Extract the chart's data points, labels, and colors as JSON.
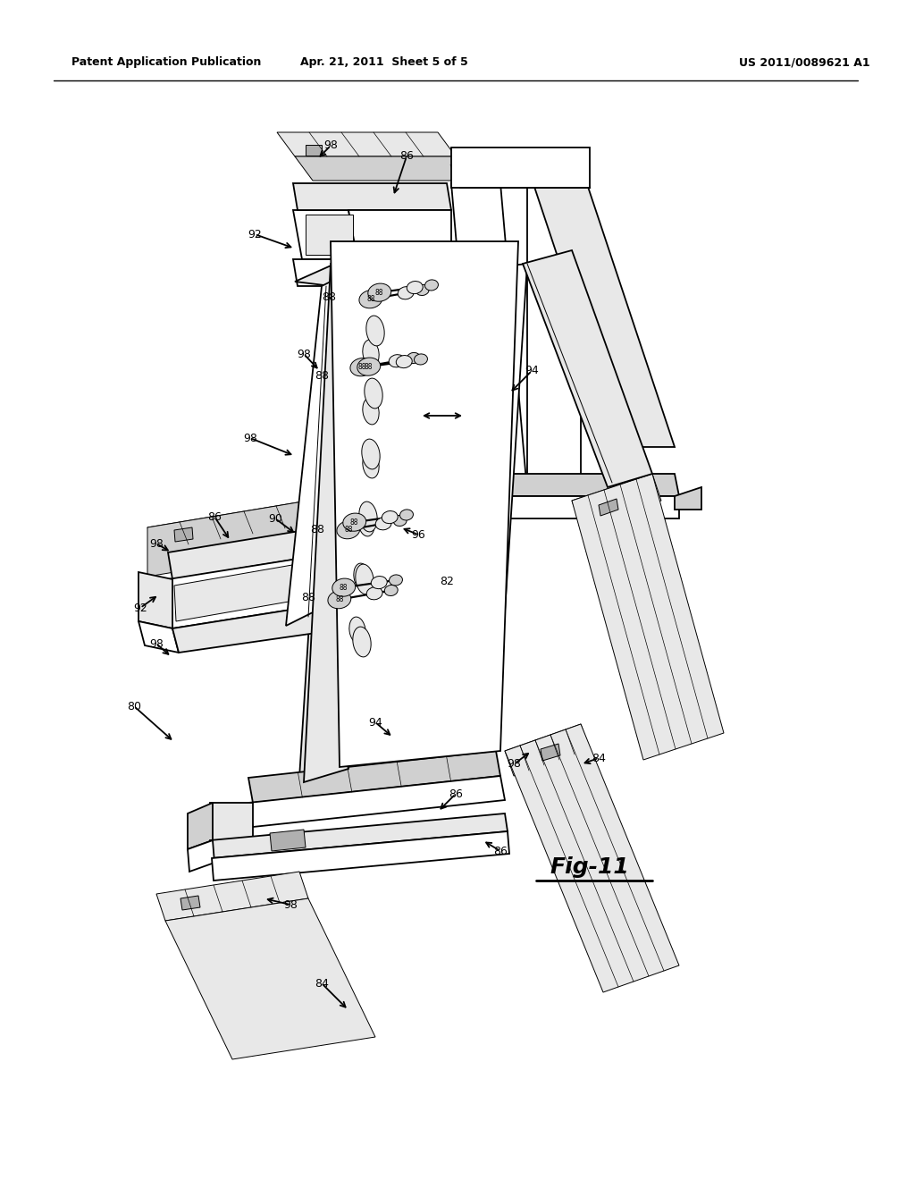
{
  "background_color": "#ffffff",
  "header_left": "Patent Application Publication",
  "header_center": "Apr. 21, 2011  Sheet 5 of 5",
  "header_right": "US 2011/0089621 A1",
  "figure_label": "Fig-11",
  "line_color": "#000000",
  "lw": 1.3,
  "tlw": 0.7,
  "gray_light": "#e8e8e8",
  "gray_mid": "#d0d0d0",
  "gray_dark": "#b0b0b0",
  "white": "#ffffff"
}
